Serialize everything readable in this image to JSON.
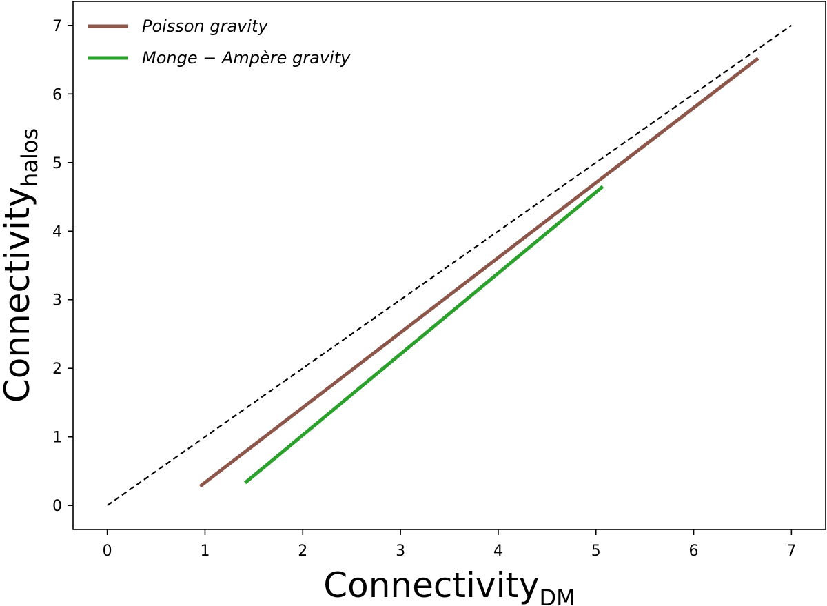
{
  "chart_data": {
    "type": "line",
    "xlabel": "Connectivity",
    "xlabel_sub": "DM",
    "ylabel": "Connectivity",
    "ylabel_sub": "halos",
    "xlim": [
      -0.35,
      7.35
    ],
    "ylim": [
      -0.35,
      7.35
    ],
    "xticks": [
      0,
      1,
      2,
      3,
      4,
      5,
      6,
      7
    ],
    "yticks": [
      0,
      1,
      2,
      3,
      4,
      5,
      6,
      7
    ],
    "grid": false,
    "legend_position": "top-left",
    "reference_line": {
      "x": [
        0,
        7
      ],
      "y": [
        0,
        7
      ],
      "color": "#000000",
      "style": "dashed"
    },
    "series": [
      {
        "name": "Poisson gravity",
        "color": "#8c564b",
        "x": [
          0.95,
          6.66
        ],
        "y": [
          0.28,
          6.52
        ]
      },
      {
        "name": "Monge − Ampère gravity",
        "color": "#2ca02c",
        "x": [
          1.41,
          5.07
        ],
        "y": [
          0.33,
          4.65
        ]
      }
    ]
  }
}
